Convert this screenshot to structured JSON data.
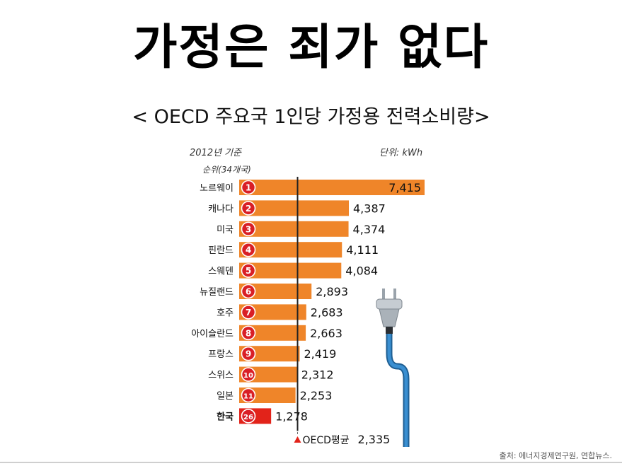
{
  "page": {
    "title": "가정은 죄가 없다",
    "subtitle": "< OECD 주요국 1인당 가정용 전력소비량>",
    "year_label": "2012년 기준",
    "unit_label": "단위: kWh",
    "rank_header": "순위(34개국)",
    "source": "출처: 에너지경제연구원, 연합뉴스."
  },
  "colors": {
    "bar": "#ef8529",
    "highlight_bar": "#e2231a",
    "badge": "#d91f26",
    "avg_line": "#222222",
    "plug_cable": "#3a8fd1"
  },
  "chart_data": {
    "type": "bar",
    "orientation": "horizontal",
    "title": "< OECD 주요국 1인당 가정용 전력소비량>",
    "unit": "kWh",
    "categories": [
      "노르웨이",
      "캐나다",
      "미국",
      "핀란드",
      "스웨덴",
      "뉴질랜드",
      "호주",
      "아이슬란드",
      "프랑스",
      "스위스",
      "일본",
      "한국"
    ],
    "ranks": [
      "1",
      "2",
      "3",
      "4",
      "5",
      "6",
      "7",
      "8",
      "9",
      "10",
      "11",
      "26"
    ],
    "values": [
      7415,
      4387,
      4374,
      4111,
      4084,
      2893,
      2683,
      2663,
      2419,
      2312,
      2253,
      1278
    ],
    "value_labels": [
      "7,415",
      "4,387",
      "4,374",
      "4,111",
      "4,084",
      "2,893",
      "2,683",
      "2,663",
      "2,419",
      "2,312",
      "2,253",
      "1,278"
    ],
    "highlight": "한국",
    "average": {
      "label": "OECD평균",
      "value": 2335,
      "value_label": "2,335"
    },
    "xlim": [
      0,
      7415
    ]
  }
}
